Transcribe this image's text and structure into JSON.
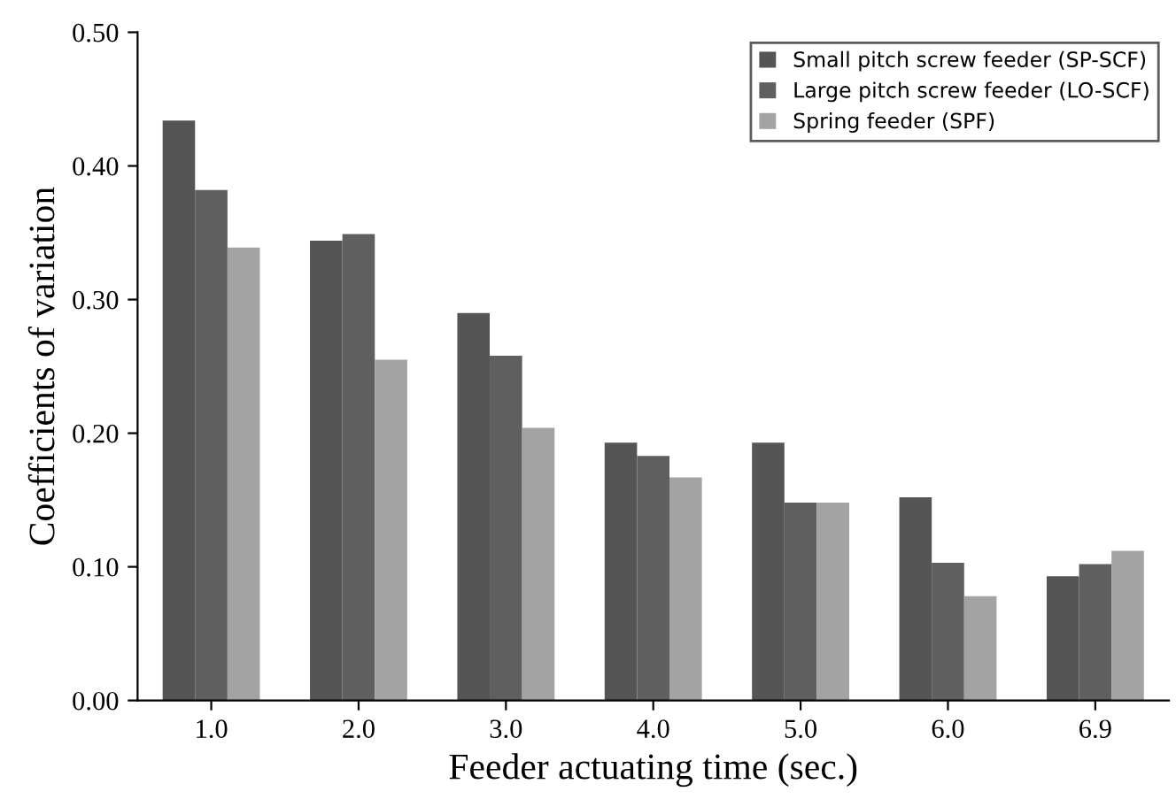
{
  "chart_data": {
    "type": "bar",
    "xlabel": "Feeder actuating time (sec.)",
    "ylabel": "Coefficients of variation",
    "categories": [
      "1.0",
      "2.0",
      "3.0",
      "4.0",
      "5.0",
      "6.0",
      "6.9"
    ],
    "series": [
      {
        "name": "Small pitch screw feeder (SP-SCF)",
        "color": "#555555",
        "values": [
          0.434,
          0.344,
          0.29,
          0.193,
          0.193,
          0.152,
          0.093
        ]
      },
      {
        "name": "Large pitch screw feeder (LO-SCF)",
        "color": "#5f5f5f",
        "values": [
          0.382,
          0.349,
          0.258,
          0.183,
          0.148,
          0.103,
          0.102
        ]
      },
      {
        "name": "Spring feeder (SPF)",
        "color": "#a3a3a3",
        "values": [
          0.339,
          0.255,
          0.204,
          0.167,
          0.148,
          0.078,
          0.112
        ]
      }
    ],
    "ylim": [
      0,
      0.5
    ],
    "yticks": [
      {
        "value": 0,
        "label": "0.00"
      },
      {
        "value": 0.1,
        "label": "0.10"
      },
      {
        "value": 0.2,
        "label": "0.20"
      },
      {
        "value": 0.3,
        "label": "0.30"
      },
      {
        "value": 0.4,
        "label": "0.40"
      },
      {
        "value": 0.5,
        "label": "0.50"
      }
    ],
    "grid": false,
    "legend": "top right"
  }
}
